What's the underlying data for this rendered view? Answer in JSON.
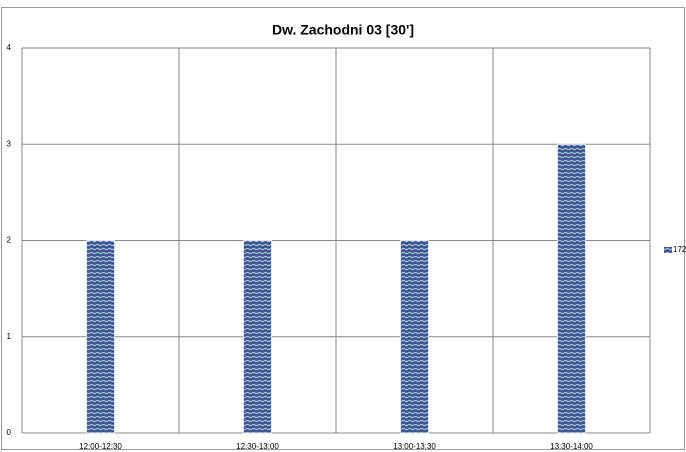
{
  "chart_data": {
    "type": "bar",
    "title": "Dw. Zachodni 03 [30']",
    "categories": [
      "12:00-12:30",
      "12:30-13:00",
      "13:00-13:30",
      "13:30-14:00"
    ],
    "series": [
      {
        "name": "172",
        "color": "#4a679f",
        "values": [
          2,
          2,
          2,
          3
        ]
      }
    ],
    "ylim": [
      0,
      4
    ],
    "yticks": [
      0,
      1,
      2,
      3,
      4
    ],
    "grid": true,
    "legend": "right"
  }
}
